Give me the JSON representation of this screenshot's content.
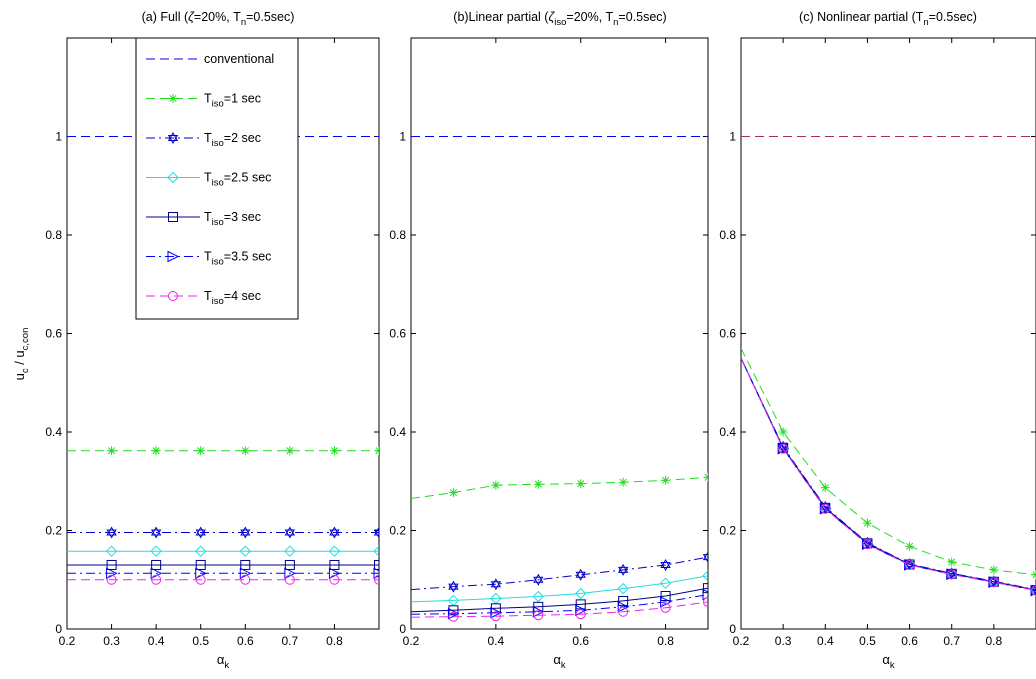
{
  "ylabel": {
    "main": "u",
    "sub1": "c",
    "sep": " / u",
    "sub2": "c,con"
  },
  "xlabel": {
    "main": "α",
    "sub": "k"
  },
  "legend": [
    {
      "prefix": "",
      "sub": "",
      "suffix": "conventional",
      "color": "#0000ff",
      "marker": "none",
      "dash": "dash"
    },
    {
      "prefix": "T",
      "sub": "iso",
      "suffix": "=1 sec",
      "color": "#22dd22",
      "marker": "star",
      "dash": "dash"
    },
    {
      "prefix": "T",
      "sub": "iso",
      "suffix": "=2 sec",
      "color": "#0000cc",
      "marker": "hexagram",
      "dash": "dashdot"
    },
    {
      "prefix": "T",
      "sub": "iso",
      "suffix": "=2.5 sec",
      "color": "#22dddd",
      "marker": "diamond",
      "dash": "solid"
    },
    {
      "prefix": "T",
      "sub": "iso",
      "suffix": "=3 sec",
      "color": "#000088",
      "marker": "square",
      "dash": "solid"
    },
    {
      "prefix": "T",
      "sub": "iso",
      "suffix": "=3.5 sec",
      "color": "#0000ff",
      "marker": "triangle",
      "dash": "dashdot"
    },
    {
      "prefix": "T",
      "sub": "iso",
      "suffix": "=4 sec",
      "color": "#ee22ee",
      "marker": "circle",
      "dash": "dash"
    }
  ],
  "chart_data": [
    {
      "type": "line",
      "title": {
        "t1": "(a) Full (",
        "g1": "ζ",
        "t2": "=20%, T",
        "s1": "n",
        "t3": "=0.5sec)"
      },
      "xlim": [
        0.2,
        0.9
      ],
      "ylim": [
        0,
        1.2
      ],
      "x_ticks": [
        "0.2",
        "0.3",
        "0.4",
        "0.5",
        "0.6",
        "0.7",
        "0.8"
      ],
      "y_ticks": [
        "0",
        "0.2",
        "0.4",
        "0.6",
        "0.8",
        "1"
      ],
      "x": [
        0.2,
        0.3,
        0.4,
        0.5,
        0.6,
        0.7,
        0.8,
        0.9
      ],
      "series": [
        {
          "values": [
            1,
            1,
            1,
            1,
            1,
            1,
            1,
            1
          ]
        },
        {
          "values": [
            0.362,
            0.362,
            0.362,
            0.362,
            0.362,
            0.362,
            0.362,
            0.362
          ]
        },
        {
          "values": [
            0.196,
            0.196,
            0.196,
            0.196,
            0.196,
            0.196,
            0.196,
            0.196
          ]
        },
        {
          "values": [
            0.158,
            0.158,
            0.158,
            0.158,
            0.158,
            0.158,
            0.158,
            0.158
          ]
        },
        {
          "values": [
            0.13,
            0.13,
            0.13,
            0.13,
            0.13,
            0.13,
            0.13,
            0.13
          ]
        },
        {
          "values": [
            0.113,
            0.113,
            0.113,
            0.113,
            0.113,
            0.113,
            0.113,
            0.113
          ]
        },
        {
          "values": [
            0.1,
            0.1,
            0.1,
            0.1,
            0.1,
            0.1,
            0.1,
            0.1
          ]
        }
      ]
    },
    {
      "type": "line",
      "title": {
        "t1": "(b)Linear partial (",
        "g1": "ζ",
        "s0": "iso",
        "t2": "=20%, T",
        "s1": "n",
        "t3": "=0.5sec)"
      },
      "xlim": [
        0.2,
        0.9
      ],
      "ylim": [
        0,
        1.2
      ],
      "x_ticks": [
        "0.2",
        "0.4",
        "0.6",
        "0.8"
      ],
      "y_ticks": [
        "0",
        "0.2",
        "0.4",
        "0.6",
        "0.8",
        "1"
      ],
      "x": [
        0.2,
        0.3,
        0.4,
        0.5,
        0.6,
        0.7,
        0.8,
        0.9
      ],
      "series": [
        {
          "values": [
            1,
            1,
            1,
            1,
            1,
            1,
            1,
            1
          ]
        },
        {
          "values": [
            0.265,
            0.277,
            0.292,
            0.294,
            0.295,
            0.298,
            0.302,
            0.308
          ]
        },
        {
          "values": [
            0.08,
            0.086,
            0.091,
            0.1,
            0.11,
            0.12,
            0.13,
            0.146
          ]
        },
        {
          "values": [
            0.055,
            0.058,
            0.062,
            0.066,
            0.072,
            0.082,
            0.093,
            0.108
          ]
        },
        {
          "values": [
            0.035,
            0.038,
            0.042,
            0.045,
            0.05,
            0.057,
            0.067,
            0.083
          ]
        },
        {
          "values": [
            0.03,
            0.031,
            0.033,
            0.035,
            0.038,
            0.045,
            0.055,
            0.07
          ]
        },
        {
          "values": [
            0.024,
            0.025,
            0.026,
            0.028,
            0.03,
            0.035,
            0.043,
            0.055
          ]
        }
      ]
    },
    {
      "type": "line",
      "title": {
        "t1": "(c) Nonlinear partial (T",
        "s1": "n",
        "t3": "=0.5sec)"
      },
      "xlim": [
        0.2,
        0.9
      ],
      "ylim": [
        0,
        1.2
      ],
      "x_ticks": [
        "0.2",
        "0.3",
        "0.4",
        "0.5",
        "0.6",
        "0.7",
        "0.8"
      ],
      "y_ticks": [
        "0",
        "0.2",
        "0.4",
        "0.6",
        "0.8",
        "1"
      ],
      "x": [
        0.2,
        0.3,
        0.4,
        0.5,
        0.6,
        0.7,
        0.8,
        0.9
      ],
      "series": [
        {
          "values": [
            1,
            1,
            1,
            1,
            1,
            1,
            1,
            1
          ],
          "color": "#aa3344"
        },
        {
          "values": [
            0.57,
            0.4,
            0.287,
            0.215,
            0.168,
            0.136,
            0.12,
            0.11
          ]
        },
        {
          "values": [
            0.55,
            0.37,
            0.248,
            0.175,
            0.132,
            0.113,
            0.097,
            0.08
          ]
        },
        {
          "values": [
            0.55,
            0.368,
            0.246,
            0.174,
            0.131,
            0.112,
            0.096,
            0.079
          ]
        },
        {
          "values": [
            0.55,
            0.368,
            0.246,
            0.174,
            0.131,
            0.112,
            0.096,
            0.079
          ]
        },
        {
          "values": [
            0.55,
            0.366,
            0.244,
            0.172,
            0.13,
            0.111,
            0.095,
            0.078
          ]
        },
        {
          "values": [
            0.55,
            0.366,
            0.244,
            0.172,
            0.13,
            0.111,
            0.095,
            0.078
          ]
        }
      ]
    }
  ]
}
